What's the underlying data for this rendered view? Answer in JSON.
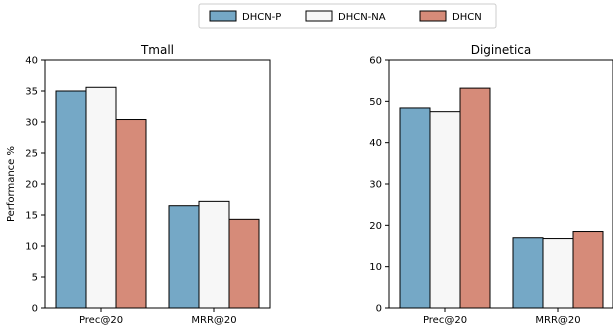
{
  "legend": [
    {
      "name": "DHCN-P",
      "color": "#75A8C6"
    },
    {
      "name": "DHCN-NA",
      "color": "#F7F7F7"
    },
    {
      "name": "DHCN",
      "color": "#D68B79"
    }
  ],
  "chart_data": [
    {
      "type": "bar",
      "title": "Tmall",
      "ylabel": "Performance %",
      "categories": [
        "Prec@20",
        "MRR@20"
      ],
      "ylim": [
        0,
        40
      ],
      "yticks": [
        0,
        5,
        10,
        15,
        20,
        25,
        30,
        35,
        40
      ],
      "series": [
        {
          "name": "DHCN-P",
          "values": [
            35.0,
            16.5
          ]
        },
        {
          "name": "DHCN-NA",
          "values": [
            35.6,
            17.2
          ]
        },
        {
          "name": "DHCN",
          "values": [
            30.4,
            14.3
          ]
        }
      ]
    },
    {
      "type": "bar",
      "title": "Diginetica",
      "ylabel": "",
      "categories": [
        "Prec@20",
        "MRR@20"
      ],
      "ylim": [
        0,
        60
      ],
      "yticks": [
        0,
        10,
        20,
        30,
        40,
        50,
        60
      ],
      "series": [
        {
          "name": "DHCN-P",
          "values": [
            48.4,
            17.0
          ]
        },
        {
          "name": "DHCN-NA",
          "values": [
            47.5,
            16.8
          ]
        },
        {
          "name": "DHCN",
          "values": [
            53.2,
            18.5
          ]
        }
      ]
    }
  ]
}
